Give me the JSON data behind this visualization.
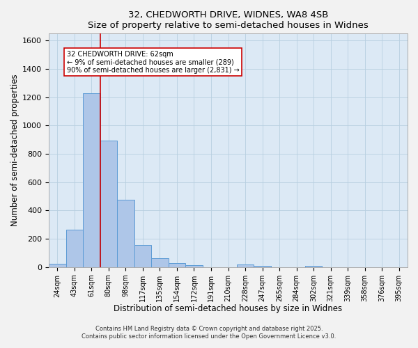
{
  "title_line1": "32, CHEDWORTH DRIVE, WIDNES, WA8 4SB",
  "title_line2": "Size of property relative to semi-detached houses in Widnes",
  "xlabel": "Distribution of semi-detached houses by size in Widnes",
  "ylabel": "Number of semi-detached properties",
  "bar_labels": [
    "24sqm",
    "43sqm",
    "61sqm",
    "80sqm",
    "98sqm",
    "117sqm",
    "135sqm",
    "154sqm",
    "172sqm",
    "191sqm",
    "210sqm",
    "228sqm",
    "247sqm",
    "265sqm",
    "284sqm",
    "302sqm",
    "321sqm",
    "339sqm",
    "358sqm",
    "376sqm",
    "395sqm"
  ],
  "bar_values": [
    25,
    265,
    1230,
    895,
    475,
    155,
    65,
    30,
    15,
    0,
    0,
    20,
    10,
    0,
    0,
    8,
    0,
    0,
    0,
    0,
    0
  ],
  "bar_color": "#aec6e8",
  "bar_edge_color": "#5b9bd5",
  "bar_width": 1.0,
  "vline_x": 2.5,
  "vline_color": "#cc0000",
  "annotation_title": "32 CHEDWORTH DRIVE: 62sqm",
  "annotation_line1": "← 9% of semi-detached houses are smaller (289)",
  "annotation_line2": "90% of semi-detached houses are larger (2,831) →",
  "annotation_box_color": "#ffffff",
  "annotation_box_edge": "#cc0000",
  "ylim": [
    0,
    1650
  ],
  "yticks": [
    0,
    200,
    400,
    600,
    800,
    1000,
    1200,
    1400,
    1600
  ],
  "grid_color": "#b8cfe0",
  "bg_color": "#dce9f5",
  "fig_bg_color": "#f2f2f2",
  "footnote1": "Contains HM Land Registry data © Crown copyright and database right 2025.",
  "footnote2": "Contains public sector information licensed under the Open Government Licence v3.0."
}
